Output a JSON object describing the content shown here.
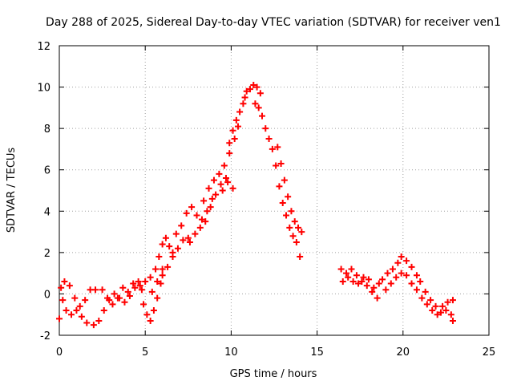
{
  "chart_data": {
    "type": "scatter",
    "title": "Day 288 of 2025, Sidereal Day-to-day VTEC variation (SDTVAR) for receiver ven1",
    "xlabel": "GPS time / hours",
    "ylabel": "SDTVAR / TECUs",
    "xlim": [
      0,
      25
    ],
    "ylim": [
      -2,
      12
    ],
    "xticks": [
      0,
      5,
      10,
      15,
      20,
      25
    ],
    "yticks": [
      -2,
      0,
      2,
      4,
      6,
      8,
      10,
      12
    ],
    "grid": true,
    "marker": "+",
    "color": "#ff0000",
    "series": [
      {
        "name": "SDTVAR",
        "points": [
          [
            0.0,
            -1.2
          ],
          [
            0.1,
            0.3
          ],
          [
            0.3,
            0.6
          ],
          [
            0.6,
            0.4
          ],
          [
            0.9,
            -0.2
          ],
          [
            1.2,
            -0.6
          ],
          [
            1.5,
            -0.3
          ],
          [
            1.8,
            0.2
          ],
          [
            2.1,
            0.2
          ],
          [
            0.2,
            -0.3
          ],
          [
            0.4,
            -0.8
          ],
          [
            0.7,
            -1.0
          ],
          [
            1.0,
            -0.8
          ],
          [
            1.3,
            -1.1
          ],
          [
            1.6,
            -1.4
          ],
          [
            2.0,
            -1.5
          ],
          [
            2.3,
            -1.3
          ],
          [
            2.6,
            -0.8
          ],
          [
            2.9,
            -0.3
          ],
          [
            3.2,
            0.0
          ],
          [
            3.5,
            -0.2
          ],
          [
            3.8,
            -0.4
          ],
          [
            4.1,
            -0.1
          ],
          [
            4.4,
            0.3
          ],
          [
            4.7,
            0.4
          ],
          [
            2.5,
            0.2
          ],
          [
            2.8,
            -0.2
          ],
          [
            3.1,
            -0.5
          ],
          [
            3.4,
            -0.2
          ],
          [
            3.7,
            0.3
          ],
          [
            4.0,
            0.1
          ],
          [
            4.3,
            0.5
          ],
          [
            4.6,
            0.6
          ],
          [
            4.8,
            0.2
          ],
          [
            4.9,
            -0.5
          ],
          [
            5.1,
            -1.0
          ],
          [
            5.3,
            -1.3
          ],
          [
            5.5,
            -0.8
          ],
          [
            5.7,
            -0.2
          ],
          [
            5.9,
            0.5
          ],
          [
            6.0,
            1.2
          ],
          [
            5.0,
            0.6
          ],
          [
            5.3,
            0.8
          ],
          [
            5.6,
            1.2
          ],
          [
            5.8,
            1.8
          ],
          [
            6.0,
            2.4
          ],
          [
            6.2,
            2.7
          ],
          [
            6.4,
            2.3
          ],
          [
            6.6,
            2.0
          ],
          [
            5.4,
            0.1
          ],
          [
            5.7,
            0.6
          ],
          [
            6.0,
            0.9
          ],
          [
            6.3,
            1.3
          ],
          [
            6.6,
            1.8
          ],
          [
            6.9,
            2.2
          ],
          [
            7.2,
            2.6
          ],
          [
            7.5,
            2.7
          ],
          [
            6.8,
            2.9
          ],
          [
            7.1,
            3.3
          ],
          [
            7.4,
            3.9
          ],
          [
            7.7,
            4.2
          ],
          [
            8.0,
            3.8
          ],
          [
            8.3,
            3.6
          ],
          [
            8.6,
            4.0
          ],
          [
            8.9,
            4.6
          ],
          [
            7.6,
            2.5
          ],
          [
            7.9,
            2.9
          ],
          [
            8.2,
            3.2
          ],
          [
            8.5,
            3.5
          ],
          [
            8.8,
            4.2
          ],
          [
            9.1,
            4.8
          ],
          [
            9.4,
            5.3
          ],
          [
            9.7,
            5.6
          ],
          [
            8.4,
            4.5
          ],
          [
            8.7,
            5.1
          ],
          [
            9.0,
            5.5
          ],
          [
            9.3,
            5.8
          ],
          [
            9.6,
            6.2
          ],
          [
            9.9,
            6.8
          ],
          [
            10.2,
            7.5
          ],
          [
            10.4,
            8.1
          ],
          [
            9.5,
            5.0
          ],
          [
            9.8,
            5.4
          ],
          [
            10.1,
            5.1
          ],
          [
            9.9,
            7.3
          ],
          [
            10.1,
            7.9
          ],
          [
            10.3,
            8.4
          ],
          [
            10.5,
            8.8
          ],
          [
            10.7,
            9.2
          ],
          [
            10.8,
            9.5
          ],
          [
            10.9,
            9.8
          ],
          [
            11.1,
            9.9
          ],
          [
            11.3,
            10.1
          ],
          [
            11.5,
            10.0
          ],
          [
            11.7,
            9.7
          ],
          [
            11.4,
            9.2
          ],
          [
            11.6,
            9.0
          ],
          [
            11.8,
            8.6
          ],
          [
            12.0,
            8.0
          ],
          [
            12.2,
            7.5
          ],
          [
            12.4,
            7.0
          ],
          [
            12.6,
            6.2
          ],
          [
            12.8,
            5.2
          ],
          [
            13.0,
            4.4
          ],
          [
            13.2,
            3.8
          ],
          [
            13.4,
            3.2
          ],
          [
            13.6,
            2.8
          ],
          [
            13.8,
            2.5
          ],
          [
            14.0,
            1.8
          ],
          [
            12.7,
            7.1
          ],
          [
            12.9,
            6.3
          ],
          [
            13.1,
            5.5
          ],
          [
            13.3,
            4.7
          ],
          [
            13.5,
            4.0
          ],
          [
            13.7,
            3.5
          ],
          [
            13.9,
            3.2
          ],
          [
            14.1,
            3.0
          ],
          [
            16.4,
            1.2
          ],
          [
            16.7,
            1.0
          ],
          [
            17.0,
            1.2
          ],
          [
            17.3,
            0.9
          ],
          [
            17.6,
            0.6
          ],
          [
            17.9,
            0.4
          ],
          [
            18.2,
            0.1
          ],
          [
            18.5,
            -0.2
          ],
          [
            16.5,
            0.6
          ],
          [
            16.8,
            0.8
          ],
          [
            17.1,
            0.6
          ],
          [
            17.4,
            0.5
          ],
          [
            17.7,
            0.8
          ],
          [
            18.0,
            0.7
          ],
          [
            18.3,
            0.3
          ],
          [
            18.6,
            0.5
          ],
          [
            18.8,
            0.7
          ],
          [
            19.1,
            1.0
          ],
          [
            19.4,
            1.2
          ],
          [
            19.7,
            1.5
          ],
          [
            19.9,
            1.8
          ],
          [
            20.2,
            1.6
          ],
          [
            20.5,
            1.3
          ],
          [
            20.8,
            0.9
          ],
          [
            19.0,
            0.2
          ],
          [
            19.3,
            0.5
          ],
          [
            19.6,
            0.8
          ],
          [
            19.9,
            1.0
          ],
          [
            20.2,
            0.9
          ],
          [
            20.5,
            0.5
          ],
          [
            20.8,
            0.2
          ],
          [
            21.1,
            -0.2
          ],
          [
            21.0,
            0.6
          ],
          [
            21.3,
            0.1
          ],
          [
            21.6,
            -0.3
          ],
          [
            21.9,
            -0.6
          ],
          [
            22.2,
            -0.9
          ],
          [
            22.5,
            -0.8
          ],
          [
            22.8,
            -1.0
          ],
          [
            22.9,
            -1.3
          ],
          [
            21.4,
            -0.5
          ],
          [
            21.7,
            -0.8
          ],
          [
            22.0,
            -1.0
          ],
          [
            22.3,
            -0.6
          ],
          [
            22.6,
            -0.4
          ],
          [
            22.9,
            -0.3
          ]
        ]
      }
    ]
  }
}
